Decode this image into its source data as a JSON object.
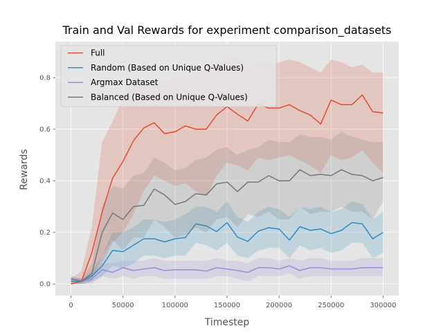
{
  "chart_data": {
    "type": "line",
    "title": "Train and Val Rewards for experiment comparison_datasets",
    "xlabel": "Timestep",
    "ylabel": "Rewards",
    "xlim": [
      -15000,
      315000
    ],
    "ylim": [
      -0.045,
      0.94
    ],
    "xticks": [
      0,
      50000,
      100000,
      150000,
      200000,
      250000,
      300000
    ],
    "yticks": [
      0.0,
      0.2,
      0.4,
      0.6,
      0.8
    ],
    "grid": true,
    "legend_position": "upper-left",
    "x": [
      0,
      10000,
      20000,
      30000,
      40000,
      50000,
      60000,
      70000,
      80000,
      90000,
      100000,
      110000,
      120000,
      130000,
      140000,
      150000,
      160000,
      170000,
      180000,
      190000,
      200000,
      210000,
      220000,
      230000,
      240000,
      250000,
      260000,
      270000,
      280000,
      290000,
      300000
    ],
    "series": [
      {
        "name": "Full",
        "color": "#E24A33",
        "values": [
          0.0,
          0.01,
          0.12,
          0.28,
          0.41,
          0.475,
          0.555,
          0.605,
          0.625,
          0.583,
          0.59,
          0.613,
          0.6,
          0.6,
          0.655,
          0.688,
          0.658,
          0.632,
          0.698,
          0.682,
          0.682,
          0.695,
          0.672,
          0.655,
          0.62,
          0.713,
          0.695,
          0.695,
          0.733,
          0.668,
          0.663
        ],
        "upper": [
          0.02,
          0.05,
          0.22,
          0.55,
          0.63,
          0.72,
          0.8,
          0.79,
          0.79,
          0.78,
          0.8,
          0.8,
          0.82,
          0.84,
          0.86,
          0.89,
          0.87,
          0.84,
          0.86,
          0.85,
          0.86,
          0.87,
          0.86,
          0.84,
          0.82,
          0.87,
          0.86,
          0.84,
          0.85,
          0.82,
          0.82
        ],
        "lower": [
          0.0,
          0.0,
          0.03,
          0.08,
          0.16,
          0.2,
          0.27,
          0.36,
          0.42,
          0.4,
          0.38,
          0.39,
          0.36,
          0.34,
          0.42,
          0.47,
          0.46,
          0.44,
          0.49,
          0.48,
          0.49,
          0.5,
          0.48,
          0.46,
          0.43,
          0.5,
          0.48,
          0.49,
          0.52,
          0.47,
          0.43
        ]
      },
      {
        "name": "Random (Based on Unique Q-Values)",
        "color": "#348ABD",
        "values": [
          0.01,
          0.01,
          0.03,
          0.07,
          0.13,
          0.125,
          0.15,
          0.175,
          0.175,
          0.163,
          0.175,
          0.18,
          0.233,
          0.225,
          0.203,
          0.238,
          0.182,
          0.165,
          0.205,
          0.218,
          0.213,
          0.17,
          0.222,
          0.208,
          0.213,
          0.195,
          0.208,
          0.238,
          0.233,
          0.175,
          0.2
        ],
        "upper": [
          0.02,
          0.02,
          0.05,
          0.11,
          0.2,
          0.2,
          0.22,
          0.25,
          0.25,
          0.24,
          0.25,
          0.27,
          0.3,
          0.3,
          0.28,
          0.32,
          0.26,
          0.24,
          0.28,
          0.3,
          0.29,
          0.26,
          0.3,
          0.29,
          0.3,
          0.28,
          0.29,
          0.32,
          0.31,
          0.25,
          0.28
        ],
        "lower": [
          0.0,
          0.0,
          0.01,
          0.03,
          0.07,
          0.06,
          0.08,
          0.11,
          0.11,
          0.1,
          0.11,
          0.11,
          0.16,
          0.15,
          0.13,
          0.16,
          0.11,
          0.1,
          0.13,
          0.14,
          0.14,
          0.1,
          0.15,
          0.13,
          0.14,
          0.12,
          0.13,
          0.16,
          0.16,
          0.1,
          0.12
        ]
      },
      {
        "name": "Argmax Dataset",
        "color": "#988ED5",
        "values": [
          0.02,
          0.01,
          0.02,
          0.055,
          0.045,
          0.063,
          0.052,
          0.058,
          0.063,
          0.052,
          0.055,
          0.055,
          0.055,
          0.05,
          0.063,
          0.058,
          0.052,
          0.045,
          0.063,
          0.063,
          0.058,
          0.07,
          0.052,
          0.063,
          0.063,
          0.058,
          0.058,
          0.058,
          0.063,
          0.063,
          0.063
        ],
        "upper": [
          0.03,
          0.02,
          0.04,
          0.08,
          0.08,
          0.09,
          0.09,
          0.09,
          0.1,
          0.09,
          0.09,
          0.09,
          0.09,
          0.09,
          0.1,
          0.09,
          0.09,
          0.08,
          0.1,
          0.1,
          0.09,
          0.1,
          0.09,
          0.1,
          0.1,
          0.09,
          0.09,
          0.09,
          0.1,
          0.1,
          0.1
        ],
        "lower": [
          0.01,
          0.0,
          0.0,
          0.03,
          0.02,
          0.03,
          0.02,
          0.03,
          0.03,
          0.02,
          0.02,
          0.02,
          0.02,
          0.02,
          0.03,
          0.03,
          0.02,
          0.01,
          0.03,
          0.03,
          0.03,
          0.04,
          0.02,
          0.03,
          0.03,
          0.03,
          0.03,
          0.03,
          0.03,
          0.03,
          0.03
        ]
      },
      {
        "name": "Balanced (Based on Unique Q-Values)",
        "color": "#777777",
        "values": [
          0.02,
          0.01,
          0.04,
          0.2,
          0.275,
          0.25,
          0.3,
          0.305,
          0.368,
          0.345,
          0.308,
          0.32,
          0.35,
          0.345,
          0.388,
          0.395,
          0.358,
          0.395,
          0.395,
          0.42,
          0.4,
          0.4,
          0.443,
          0.42,
          0.425,
          0.42,
          0.443,
          0.425,
          0.42,
          0.4,
          0.413
        ],
        "upper": [
          0.03,
          0.02,
          0.08,
          0.3,
          0.38,
          0.37,
          0.42,
          0.43,
          0.49,
          0.47,
          0.44,
          0.45,
          0.48,
          0.49,
          0.52,
          0.53,
          0.5,
          0.52,
          0.53,
          0.56,
          0.55,
          0.55,
          0.58,
          0.57,
          0.57,
          0.56,
          0.59,
          0.57,
          0.56,
          0.55,
          0.55
        ],
        "lower": [
          0.01,
          0.0,
          0.01,
          0.11,
          0.17,
          0.13,
          0.18,
          0.18,
          0.25,
          0.22,
          0.18,
          0.19,
          0.22,
          0.2,
          0.25,
          0.26,
          0.22,
          0.27,
          0.26,
          0.28,
          0.25,
          0.25,
          0.3,
          0.27,
          0.28,
          0.28,
          0.3,
          0.28,
          0.28,
          0.25,
          0.32
        ]
      }
    ]
  }
}
